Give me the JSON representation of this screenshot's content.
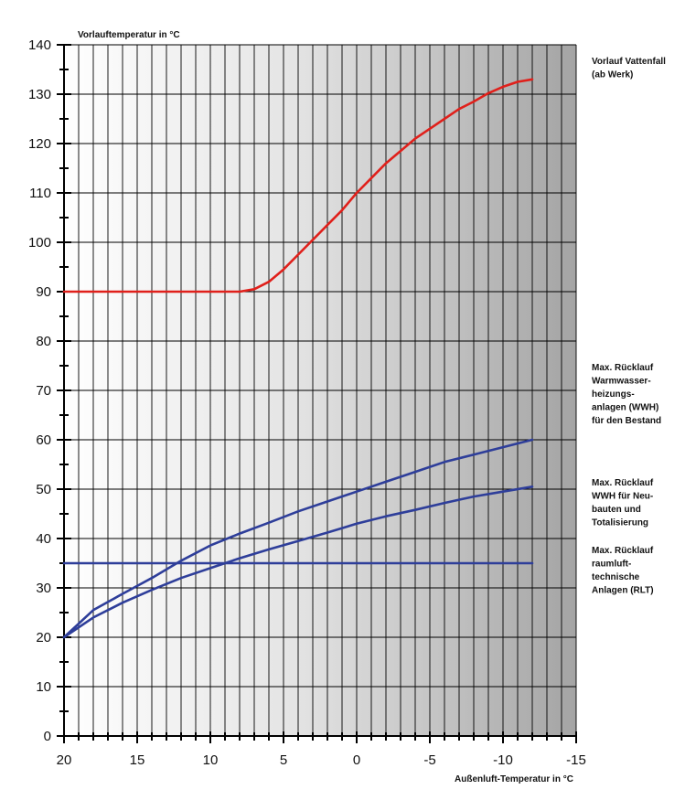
{
  "chart_data": {
    "type": "line",
    "ylabel": "Vorlauftemperatur in °C",
    "xlabel": "Außenluft-Temperatur in °C",
    "xlim": [
      20,
      -15
    ],
    "ylim": [
      0,
      140
    ],
    "x_ticks": [
      "20",
      "15",
      "10",
      "5",
      "0",
      "-5",
      "-10",
      "-15"
    ],
    "y_ticks": [
      "0",
      "10",
      "20",
      "30",
      "40",
      "50",
      "60",
      "70",
      "80",
      "90",
      "100",
      "110",
      "120",
      "130",
      "140"
    ],
    "grid": true,
    "series": [
      {
        "name": "Vorlauf Vattenfall (ab Werk)",
        "label_lines": [
          "Vorlauf Vattenfall",
          "(ab Werk)"
        ],
        "color": "#e0201b",
        "x": [
          20,
          15,
          10,
          8,
          7,
          6,
          5,
          4,
          3,
          2,
          1,
          0,
          -1,
          -2,
          -3,
          -4,
          -5,
          -6,
          -7,
          -8,
          -9,
          -10,
          -11,
          -12
        ],
        "y": [
          90,
          90,
          90,
          90,
          90.5,
          92,
          94.5,
          97.5,
          100.5,
          103.5,
          106.5,
          110,
          113,
          116,
          118.5,
          121,
          123,
          125,
          127,
          128.5,
          130.2,
          131.5,
          132.5,
          133
        ]
      },
      {
        "name": "Max. Rücklauf Warmwasserheizungsanlagen (WWH) für den Bestand",
        "label_lines": [
          "Max. Rücklauf",
          "Warmwasser-",
          "heizungs-",
          "anlagen (WWH)",
          "für den Bestand"
        ],
        "color": "#2e3e9a",
        "x": [
          20,
          18,
          16,
          14,
          12,
          10,
          8,
          6,
          4,
          2,
          0,
          -2,
          -4,
          -6,
          -8,
          -10,
          -12
        ],
        "y": [
          20,
          25.5,
          28.8,
          32,
          35.5,
          38.6,
          41,
          43.2,
          45.5,
          47.5,
          49.5,
          51.5,
          53.5,
          55.5,
          57,
          58.5,
          60
        ]
      },
      {
        "name": "Max. Rücklauf WWH für Neubauten und Totalisierung",
        "label_lines": [
          "Max. Rücklauf",
          "WWH für Neu-",
          "bauten und",
          "Totalisierung"
        ],
        "color": "#2e3e9a",
        "x": [
          20,
          18,
          16,
          14,
          12,
          10,
          8,
          6,
          4,
          2,
          0,
          -2,
          -4,
          -6,
          -8,
          -10,
          -12
        ],
        "y": [
          20,
          24,
          27,
          29.6,
          32,
          34,
          36,
          37.8,
          39.5,
          41.2,
          43,
          44.5,
          45.8,
          47.2,
          48.5,
          49.5,
          50.5
        ]
      },
      {
        "name": "Max. Rücklauf raumlufttechnische Anlagen (RLT)",
        "label_lines": [
          "Max. Rücklauf",
          "raumluft-",
          "technische",
          "Anlagen (RLT)"
        ],
        "color": "#2e3e9a",
        "x": [
          20,
          -12
        ],
        "y": [
          35,
          35
        ]
      }
    ]
  }
}
